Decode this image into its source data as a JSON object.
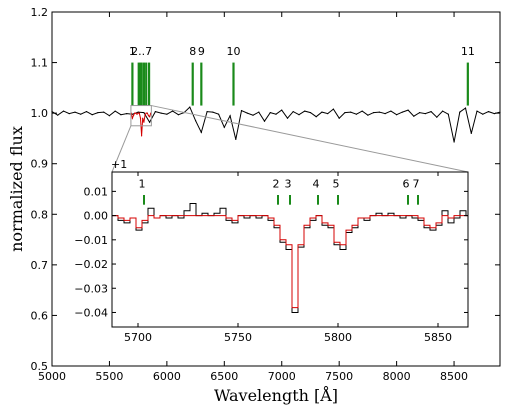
{
  "chart_data": [
    {
      "panel": "main",
      "type": "line",
      "xlabel": "Wavelength [Å]",
      "ylabel": "normalized flux",
      "xlim": [
        5000,
        8900
      ],
      "ylim": [
        0.5,
        1.2
      ],
      "xticks": [
        5000,
        5500,
        6000,
        6500,
        7000,
        7500,
        8000,
        8500
      ],
      "yticks": [
        "0.5",
        "0.6",
        "0.7",
        "0.8",
        "0.9",
        "1.0",
        "1.1",
        "1.2"
      ],
      "grid": false,
      "series": [
        {
          "color": "#000000",
          "x": [
            5000,
            5050,
            5100,
            5150,
            5200,
            5250,
            5300,
            5350,
            5400,
            5450,
            5500,
            5550,
            5600,
            5650,
            5700,
            5750,
            5800,
            5850,
            5900,
            5950,
            6000,
            6050,
            6100,
            6150,
            6200,
            6250,
            6300,
            6350,
            6400,
            6450,
            6500,
            6550,
            6600,
            6650,
            6700,
            6750,
            6800,
            6850,
            6900,
            6950,
            7000,
            7050,
            7100,
            7150,
            7200,
            7250,
            7300,
            7350,
            7400,
            7450,
            7500,
            7550,
            7600,
            7650,
            7700,
            7750,
            7800,
            7850,
            7900,
            7950,
            8000,
            8050,
            8100,
            8150,
            8200,
            8250,
            8300,
            8350,
            8400,
            8450,
            8500,
            8550,
            8600,
            8650,
            8700,
            8750,
            8800,
            8850,
            8900
          ],
          "y": [
            1.003,
            0.996,
            1.004,
            0.999,
            1.002,
            0.998,
            1.003,
            0.997,
            1.001,
            1.002,
            0.995,
            1.004,
            0.997,
            0.999,
            0.998,
            1.002,
            1.001,
            0.982,
            1.003,
            1.0,
            0.998,
            1.004,
            0.997,
            1.001,
            1.012,
            0.985,
            0.962,
            1.003,
            1.002,
            0.998,
            0.972,
            0.995,
            0.948,
            1.005,
            1.0,
            0.996,
            1.002,
            0.984,
            1.001,
            0.998,
            1.006,
            0.99,
            1.003,
            0.997,
            1.004,
            1.001,
            0.993,
            1.002,
            0.999,
            1.008,
            0.99,
            1.001,
            1.002,
            0.998,
            1.004,
            0.996,
            1.001,
            1.002,
            0.999,
            1.004,
            0.997,
            1.002,
            1.006,
            0.994,
            1.001,
            0.999,
            1.003,
            0.992,
            1.004,
            0.998,
            0.943,
            1.002,
            1.01,
            0.96,
            1.004,
            0.998,
            1.003,
            0.999,
            1.002
          ]
        },
        {
          "color": "#d40000",
          "x": [
            5690,
            5700,
            5710,
            5720,
            5730,
            5740,
            5750,
            5760,
            5770,
            5780,
            5790,
            5800,
            5810,
            5820,
            5830,
            5840,
            5850,
            5860
          ],
          "y": [
            1.0,
            0.99,
            0.996,
            1.0,
            1.0,
            0.998,
            1.0,
            1.0,
            0.99,
            0.955,
            0.99,
            0.982,
            0.996,
            1.0,
            1.0,
            0.995,
            0.993,
            1.0
          ]
        }
      ],
      "markers": {
        "color": "#1a8a1a",
        "items": [
          {
            "label": "1",
            "x": 5700
          },
          {
            "label": "2..7",
            "x": 5780
          },
          {
            "label": "",
            "x": 5755
          },
          {
            "label": "",
            "x": 5770
          },
          {
            "label": "",
            "x": 5800
          },
          {
            "label": "",
            "x": 5820
          },
          {
            "label": "",
            "x": 5845
          },
          {
            "label": "8",
            "x": 6225
          },
          {
            "label": "9",
            "x": 6300
          },
          {
            "label": "10",
            "x": 6580
          },
          {
            "label": "11",
            "x": 8620
          }
        ]
      }
    },
    {
      "panel": "inset",
      "type": "line",
      "offset_label": "+1",
      "xlim": [
        5687,
        5865
      ],
      "ylim": [
        -0.046,
        0.018
      ],
      "xticks": [
        5700,
        5750,
        5800,
        5850
      ],
      "yticks": [
        "0.01",
        "0.00",
        "−0.01",
        "−0.02",
        "−0.03",
        "−0.04"
      ],
      "series": [
        {
          "color": "#000000",
          "step": true,
          "x": [
            5687,
            5690,
            5693,
            5696,
            5699,
            5702,
            5705,
            5708,
            5711,
            5714,
            5717,
            5720,
            5723,
            5726,
            5729,
            5732,
            5735,
            5738,
            5741,
            5744,
            5747,
            5750,
            5753,
            5756,
            5759,
            5762,
            5765,
            5768,
            5771,
            5774,
            5777,
            5780,
            5783,
            5786,
            5789,
            5792,
            5795,
            5798,
            5801,
            5804,
            5807,
            5810,
            5813,
            5816,
            5819,
            5822,
            5825,
            5828,
            5831,
            5834,
            5837,
            5840,
            5843,
            5846,
            5849,
            5852,
            5855,
            5858,
            5861,
            5864
          ],
          "y": [
            0.0,
            -0.002,
            -0.003,
            -0.001,
            -0.006,
            -0.003,
            0.003,
            -0.001,
            0.0,
            -0.001,
            0.0,
            -0.001,
            0.002,
            0.005,
            0.0,
            0.001,
            0.0,
            0.001,
            0.003,
            -0.002,
            -0.003,
            0.0,
            -0.001,
            0.0,
            -0.001,
            0.0,
            -0.002,
            -0.005,
            -0.011,
            -0.014,
            -0.04,
            -0.013,
            -0.005,
            -0.002,
            0.0,
            -0.004,
            -0.005,
            -0.012,
            -0.014,
            -0.007,
            -0.005,
            -0.001,
            -0.002,
            0.0,
            0.001,
            0.0,
            0.001,
            0.0,
            -0.001,
            0.0,
            -0.001,
            -0.002,
            -0.005,
            -0.006,
            -0.004,
            0.002,
            -0.003,
            -0.001,
            0.002,
            0.0
          ]
        },
        {
          "color": "#d40000",
          "step": true,
          "x": [
            5687,
            5690,
            5693,
            5696,
            5699,
            5702,
            5705,
            5708,
            5711,
            5714,
            5717,
            5720,
            5723,
            5726,
            5729,
            5732,
            5735,
            5738,
            5741,
            5744,
            5747,
            5750,
            5753,
            5756,
            5759,
            5762,
            5765,
            5768,
            5771,
            5774,
            5777,
            5780,
            5783,
            5786,
            5789,
            5792,
            5795,
            5798,
            5801,
            5804,
            5807,
            5810,
            5813,
            5816,
            5819,
            5822,
            5825,
            5828,
            5831,
            5834,
            5837,
            5840,
            5843,
            5846,
            5849,
            5852,
            5855,
            5858,
            5861,
            5864
          ],
          "y": [
            0.0,
            -0.001,
            -0.002,
            -0.001,
            -0.005,
            -0.002,
            0.0,
            -0.001,
            0.0,
            0.0,
            0.0,
            0.0,
            0.0,
            0.0,
            0.0,
            0.0,
            0.0,
            0.0,
            0.0,
            -0.001,
            -0.002,
            0.0,
            0.0,
            0.0,
            0.0,
            0.0,
            -0.001,
            -0.004,
            -0.01,
            -0.012,
            -0.038,
            -0.012,
            -0.004,
            -0.001,
            0.0,
            -0.003,
            -0.004,
            -0.011,
            -0.012,
            -0.006,
            -0.004,
            -0.001,
            -0.001,
            0.0,
            0.0,
            0.0,
            0.0,
            0.0,
            0.0,
            0.0,
            0.0,
            -0.001,
            -0.004,
            -0.005,
            -0.003,
            0.0,
            -0.001,
            0.0,
            0.0,
            0.0
          ]
        }
      ],
      "markers": {
        "color": "#1a8a1a",
        "items": [
          {
            "label": "1",
            "x": 5703
          },
          {
            "label": "2",
            "x": 5770
          },
          {
            "label": "3",
            "x": 5776
          },
          {
            "label": "4",
            "x": 5790
          },
          {
            "label": "5",
            "x": 5800
          },
          {
            "label": "6",
            "x": 5835
          },
          {
            "label": "7",
            "x": 5840
          }
        ]
      }
    }
  ]
}
